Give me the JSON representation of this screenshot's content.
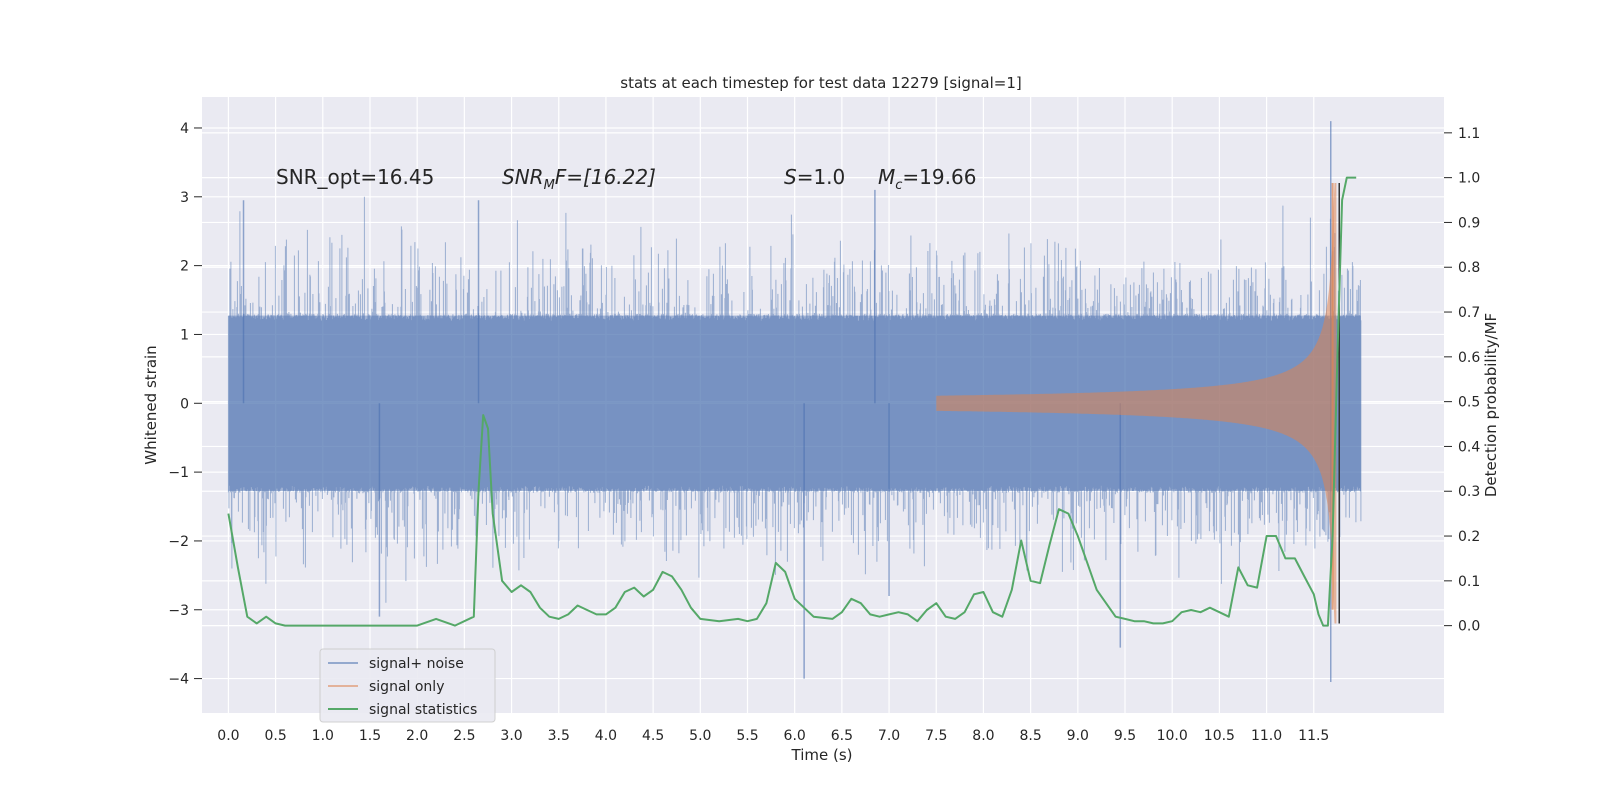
{
  "chart_data": {
    "type": "line",
    "title": "stats at each timestep for test data 12279 [signal=1]",
    "xlabel": "Time (s)",
    "ylabel": "Whitened strain",
    "y2label": "Detection probability/MF",
    "xlim": [
      -0.28,
      12.88
    ],
    "ylim": [
      -4.5,
      4.45
    ],
    "y2lim": [
      -0.195,
      1.18
    ],
    "xticks": [
      0.0,
      0.5,
      1.0,
      1.5,
      2.0,
      2.5,
      3.0,
      3.5,
      4.0,
      4.5,
      5.0,
      5.5,
      6.0,
      6.5,
      7.0,
      7.5,
      8.0,
      8.5,
      9.0,
      9.5,
      10.0,
      10.5,
      11.0,
      11.5
    ],
    "xtick_labels": [
      "0.0",
      "0.5",
      "1.0",
      "1.5",
      "2.0",
      "2.5",
      "3.0",
      "3.5",
      "4.0",
      "4.5",
      "5.0",
      "5.5",
      "6.0",
      "6.5",
      "7.0",
      "7.5",
      "8.0",
      "8.5",
      "9.0",
      "9.5",
      "10.0",
      "10.5",
      "11.0",
      "11.5"
    ],
    "yticks": [
      -4,
      -3,
      -2,
      -1,
      0,
      1,
      2,
      3,
      4
    ],
    "ytick_labels": [
      "−4",
      "−3",
      "−2",
      "−1",
      "0",
      "1",
      "2",
      "3",
      "4"
    ],
    "y2ticks": [
      0.0,
      0.1,
      0.2,
      0.3,
      0.4,
      0.5,
      0.6,
      0.7,
      0.8,
      0.9,
      1.0,
      1.1
    ],
    "y2tick_labels": [
      "0.0",
      "0.1",
      "0.2",
      "0.3",
      "0.4",
      "0.5",
      "0.6",
      "0.7",
      "0.8",
      "0.9",
      "1.0",
      "1.1"
    ],
    "grid": true,
    "legend_placement": "lower-left",
    "annotations": {
      "snr_opt": "SNR_opt=16.45",
      "snr_mf_base": "SNR",
      "snr_mf_sub": "M",
      "snr_mf_rest": "F=[16.22]",
      "s_label": "S",
      "s_rest": "=1.0",
      "mc_base": "M",
      "mc_sub": "c",
      "mc_rest": "=19.66"
    },
    "noise_series": {
      "name": "signal+ noise",
      "color": "#4c72b0",
      "x_range": [
        0.0,
        12.0
      ],
      "approx_envelope": 1.3,
      "approx_peaks": [
        [
          0.16,
          2.95
        ],
        [
          2.65,
          2.95
        ],
        [
          6.85,
          3.1
        ],
        [
          11.68,
          4.1
        ],
        [
          1.6,
          -3.1
        ],
        [
          6.1,
          -4.0
        ],
        [
          9.45,
          -3.55
        ],
        [
          11.68,
          -4.05
        ],
        [
          7.0,
          -2.8
        ]
      ]
    },
    "signal_only": {
      "name": "signal only",
      "color": "#dd8452",
      "x_range": [
        7.5,
        11.75
      ],
      "peak": 3.2
    },
    "signal_statistics": {
      "name": "signal statistics",
      "color": "#55a868",
      "x": [
        0.0,
        0.1,
        0.2,
        0.3,
        0.4,
        0.5,
        0.6,
        0.8,
        1.0,
        1.2,
        1.4,
        1.6,
        1.8,
        2.0,
        2.2,
        2.4,
        2.6,
        2.65,
        2.7,
        2.75,
        2.8,
        2.9,
        3.0,
        3.1,
        3.2,
        3.3,
        3.4,
        3.5,
        3.6,
        3.7,
        3.8,
        3.9,
        4.0,
        4.1,
        4.2,
        4.3,
        4.4,
        4.5,
        4.6,
        4.7,
        4.8,
        4.9,
        5.0,
        5.2,
        5.4,
        5.5,
        5.6,
        5.7,
        5.8,
        5.9,
        6.0,
        6.2,
        6.4,
        6.5,
        6.6,
        6.7,
        6.8,
        6.9,
        7.0,
        7.1,
        7.2,
        7.3,
        7.4,
        7.5,
        7.6,
        7.7,
        7.8,
        7.9,
        8.0,
        8.1,
        8.2,
        8.3,
        8.4,
        8.5,
        8.6,
        8.7,
        8.8,
        8.9,
        9.0,
        9.1,
        9.2,
        9.3,
        9.4,
        9.5,
        9.6,
        9.7,
        9.8,
        9.9,
        10.0,
        10.1,
        10.2,
        10.3,
        10.4,
        10.5,
        10.6,
        10.7,
        10.8,
        10.9,
        11.0,
        11.1,
        11.2,
        11.3,
        11.4,
        11.5,
        11.55,
        11.6,
        11.65,
        11.7,
        11.75,
        11.8,
        11.85,
        11.9,
        11.95
      ],
      "values": [
        0.25,
        0.13,
        0.02,
        0.005,
        0.02,
        0.005,
        0.0,
        0.0,
        0.0,
        0.0,
        0.0,
        0.0,
        0.0,
        0.0,
        0.015,
        0.0,
        0.02,
        0.3,
        0.47,
        0.44,
        0.25,
        0.1,
        0.075,
        0.09,
        0.075,
        0.04,
        0.02,
        0.015,
        0.025,
        0.045,
        0.035,
        0.025,
        0.025,
        0.04,
        0.075,
        0.085,
        0.065,
        0.08,
        0.12,
        0.11,
        0.08,
        0.04,
        0.015,
        0.01,
        0.015,
        0.01,
        0.015,
        0.05,
        0.14,
        0.12,
        0.06,
        0.02,
        0.015,
        0.03,
        0.06,
        0.05,
        0.025,
        0.02,
        0.025,
        0.03,
        0.025,
        0.01,
        0.035,
        0.05,
        0.02,
        0.015,
        0.03,
        0.07,
        0.075,
        0.03,
        0.02,
        0.08,
        0.19,
        0.1,
        0.095,
        0.18,
        0.26,
        0.25,
        0.2,
        0.14,
        0.08,
        0.05,
        0.02,
        0.015,
        0.01,
        0.01,
        0.005,
        0.005,
        0.01,
        0.03,
        0.035,
        0.03,
        0.04,
        0.03,
        0.02,
        0.13,
        0.09,
        0.085,
        0.2,
        0.2,
        0.15,
        0.15,
        0.11,
        0.07,
        0.025,
        0.0,
        0.0,
        0.2,
        0.6,
        0.95,
        1.0,
        1.0,
        1.0
      ]
    }
  }
}
